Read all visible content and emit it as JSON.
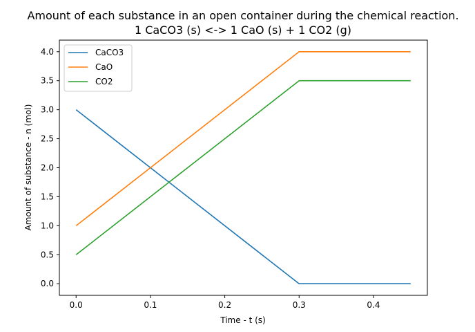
{
  "chart_data": {
    "type": "line",
    "title": "Amount of each substance in an open container during the chemical reaction.",
    "subtitle": "1 CaCO3 (s) <-> 1 CaO (s) + 1 CO2 (g)",
    "xlabel": "Time - t (s)",
    "ylabel": "Amount of substance - n (mol)",
    "xlim": [
      -0.0225,
      0.4725
    ],
    "ylim": [
      -0.2,
      4.2
    ],
    "xticks": [
      0.0,
      0.1,
      0.2,
      0.3,
      0.4
    ],
    "xtick_labels": [
      "0.0",
      "0.1",
      "0.2",
      "0.3",
      "0.4"
    ],
    "yticks": [
      0.0,
      0.5,
      1.0,
      1.5,
      2.0,
      2.5,
      3.0,
      3.5,
      4.0
    ],
    "ytick_labels": [
      "0.0",
      "0.5",
      "1.0",
      "1.5",
      "2.0",
      "2.5",
      "3.0",
      "3.5",
      "4.0"
    ],
    "grid": false,
    "legend_position": "top-left",
    "series": [
      {
        "name": "CaCO3",
        "color": "#1f77b4",
        "x": [
          0.0,
          0.3,
          0.45
        ],
        "y": [
          3.0,
          0.0,
          0.0
        ]
      },
      {
        "name": "CaO",
        "color": "#ff7f0e",
        "x": [
          0.0,
          0.3,
          0.45
        ],
        "y": [
          1.0,
          4.0,
          4.0
        ]
      },
      {
        "name": "CO2",
        "color": "#2ca02c",
        "x": [
          0.0,
          0.3,
          0.45
        ],
        "y": [
          0.5,
          3.5,
          3.5
        ]
      }
    ]
  }
}
